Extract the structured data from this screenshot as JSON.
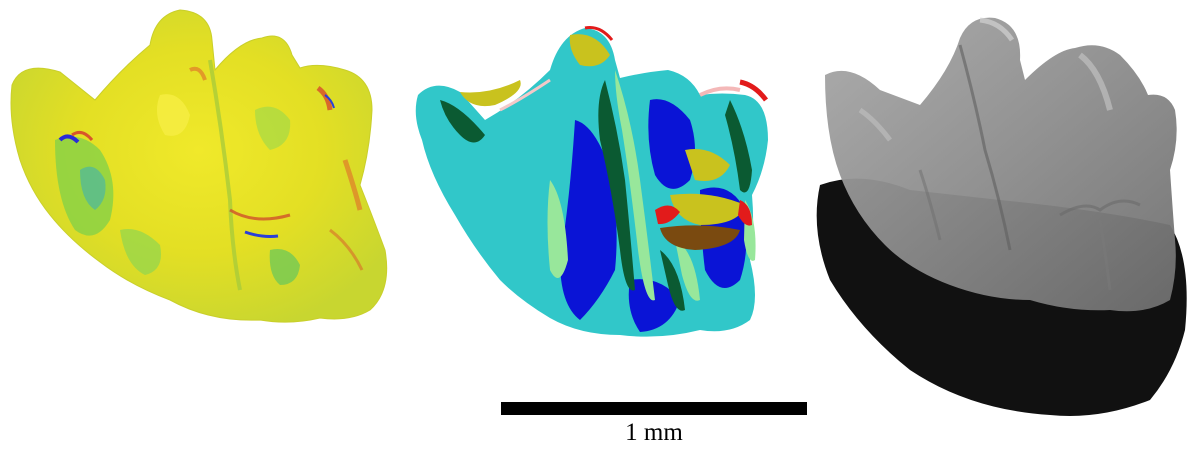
{
  "figure": {
    "panels": [
      {
        "id": "dne",
        "style": "curvature heat-map surface (yellow/green/blue/red)"
      },
      {
        "id": "opc",
        "style": "orientation patch segmented surface"
      },
      {
        "id": "rfi",
        "style": "grey shaded surface with dark footprint shadow"
      }
    ],
    "scale_bar": {
      "label": "1 mm"
    },
    "colors": {
      "heat_yellow": "#e6e420",
      "heat_green": "#7fd04a",
      "heat_blue": "#2a78d8",
      "heat_red": "#d8552a",
      "patch_cyan": "#31c7c9",
      "patch_blue": "#0a14d6",
      "patch_darkgreen": "#0b5a32",
      "patch_lightgreen": "#98e79b",
      "patch_yellow": "#c9c21e",
      "patch_red": "#e21b1b",
      "grey_surface": "#9a9a9a",
      "shadow": "#111111"
    }
  }
}
